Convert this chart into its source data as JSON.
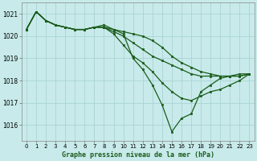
{
  "title": "Graphe pression niveau de la mer (hPa)",
  "bg_color": "#c8eaea",
  "grid_color": "#aad4d4",
  "line_color": "#1a5c1a",
  "xlim": [
    -0.5,
    23.5
  ],
  "ylim": [
    1015.3,
    1021.5
  ],
  "yticks": [
    1016,
    1017,
    1018,
    1019,
    1020,
    1021
  ],
  "xticks": [
    0,
    1,
    2,
    3,
    4,
    5,
    6,
    7,
    8,
    9,
    10,
    11,
    12,
    13,
    14,
    15,
    16,
    17,
    18,
    19,
    20,
    21,
    22,
    23
  ],
  "series": [
    [
      1020.3,
      1021.1,
      1020.7,
      1020.5,
      1020.4,
      1020.3,
      1020.3,
      1020.4,
      1020.4,
      1020.3,
      1020.2,
      1020.1,
      1020.0,
      1019.8,
      1019.5,
      1019.1,
      1018.8,
      1018.6,
      1018.4,
      1018.3,
      1018.2,
      1018.2,
      1018.2,
      1018.3
    ],
    [
      1020.3,
      1021.1,
      1020.7,
      1020.5,
      1020.4,
      1020.3,
      1020.3,
      1020.4,
      1020.4,
      1020.2,
      1020.0,
      1019.7,
      1019.4,
      1019.1,
      1018.9,
      1018.7,
      1018.5,
      1018.3,
      1018.2,
      1018.2,
      1018.2,
      1018.2,
      1018.2,
      1018.3
    ],
    [
      1020.3,
      1021.1,
      1020.7,
      1020.5,
      1020.4,
      1020.3,
      1020.3,
      1020.4,
      1020.4,
      1020.1,
      1019.6,
      1019.1,
      1018.8,
      1018.4,
      1017.9,
      1017.5,
      1017.2,
      1017.1,
      1017.3,
      1017.5,
      1017.6,
      1017.8,
      1018.0,
      1018.3
    ],
    [
      1020.3,
      1021.1,
      1020.7,
      1020.5,
      1020.4,
      1020.3,
      1020.3,
      1020.4,
      1020.5,
      1020.3,
      1020.1,
      1019.0,
      1018.5,
      1017.8,
      1016.9,
      1015.7,
      1016.3,
      1016.5,
      1017.5,
      1017.8,
      1018.1,
      1018.2,
      1018.3,
      1018.3
    ]
  ]
}
